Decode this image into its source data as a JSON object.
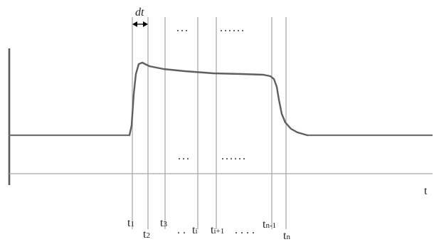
{
  "diagram": {
    "dt_label": "dt",
    "axis_label": "t",
    "dots_top": "...",
    "dots_top_long": "......",
    "dots_bottom": "...",
    "dots_bottom_long": "......",
    "tick_labels": {
      "t1": {
        "base": "t",
        "sub": "1"
      },
      "t2": {
        "base": "t",
        "sub": "2"
      },
      "t3": {
        "base": "t",
        "sub": "3"
      },
      "dots1": ". .",
      "ti": {
        "base": "t",
        "sub": "i"
      },
      "ti1": {
        "base": "t",
        "sub": "i+1"
      },
      "dots2": ". . . .",
      "tn1": {
        "base": "t",
        "sub": "n-1"
      },
      "tn": {
        "base": "t",
        "sub": "n"
      }
    }
  }
}
